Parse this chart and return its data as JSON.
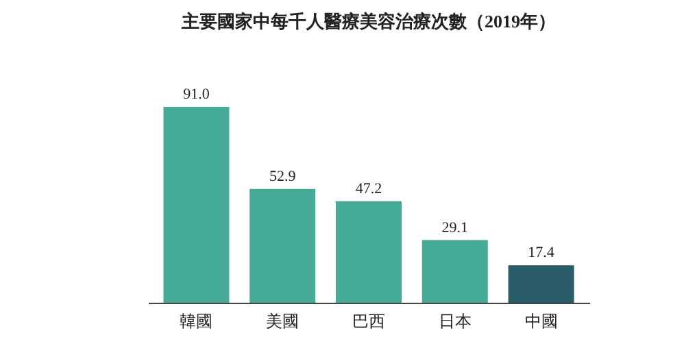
{
  "chart_data": {
    "type": "bar",
    "title": "主要國家中每千人醫療美容治療次數（2019年）",
    "categories": [
      "韓國",
      "美國",
      "巴西",
      "日本",
      "中國"
    ],
    "values": [
      91.0,
      52.9,
      47.2,
      29.1,
      17.4
    ],
    "value_labels": [
      "91.0",
      "52.9",
      "47.2",
      "29.1",
      "17.4"
    ],
    "colors": [
      "#45ab96",
      "#45ab96",
      "#45ab96",
      "#45ab96",
      "#2b5d69"
    ]
  }
}
